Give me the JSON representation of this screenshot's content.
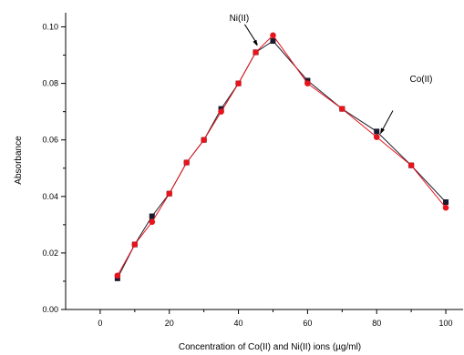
{
  "chart_data": {
    "type": "line",
    "xlabel": "Concentration of Co(II) and Ni(II) ions (µg/ml)",
    "ylabel": "Absorbance",
    "xlim": [
      -10,
      105
    ],
    "ylim": [
      0,
      0.105
    ],
    "x_ticks": [
      0,
      20,
      40,
      60,
      80,
      100
    ],
    "y_ticks": [
      0.0,
      0.02,
      0.04,
      0.06,
      0.08,
      0.1
    ],
    "y_tick_labels": [
      "0.00",
      "0.02",
      "0.04",
      "0.06",
      "0.08",
      "0.10"
    ],
    "grid": false,
    "series": [
      {
        "name": "Ni(II)",
        "color": "#1a1a2e",
        "marker": "square",
        "x": [
          5,
          10,
          15,
          20,
          25,
          30,
          35,
          40,
          45,
          50,
          60,
          70,
          80,
          90,
          100
        ],
        "y": [
          0.011,
          0.023,
          0.033,
          0.041,
          0.052,
          0.06,
          0.071,
          0.08,
          0.091,
          0.095,
          0.081,
          0.071,
          0.063,
          0.051,
          0.038
        ]
      },
      {
        "name": "Co(II)",
        "color": "#e8141c",
        "marker": "circle",
        "x": [
          5,
          10,
          15,
          20,
          25,
          30,
          35,
          40,
          45,
          50,
          60,
          70,
          80,
          90,
          100
        ],
        "y": [
          0.012,
          0.023,
          0.031,
          0.041,
          0.052,
          0.06,
          0.07,
          0.08,
          0.091,
          0.097,
          0.08,
          0.071,
          0.061,
          0.051,
          0.036
        ]
      }
    ],
    "annotations": [
      {
        "text": "Ni(II)",
        "series": 0,
        "x": 45.5,
        "y": 0.0925
      },
      {
        "text": "Co(II)",
        "series": 1,
        "x": 81,
        "y": 0.062
      }
    ]
  }
}
